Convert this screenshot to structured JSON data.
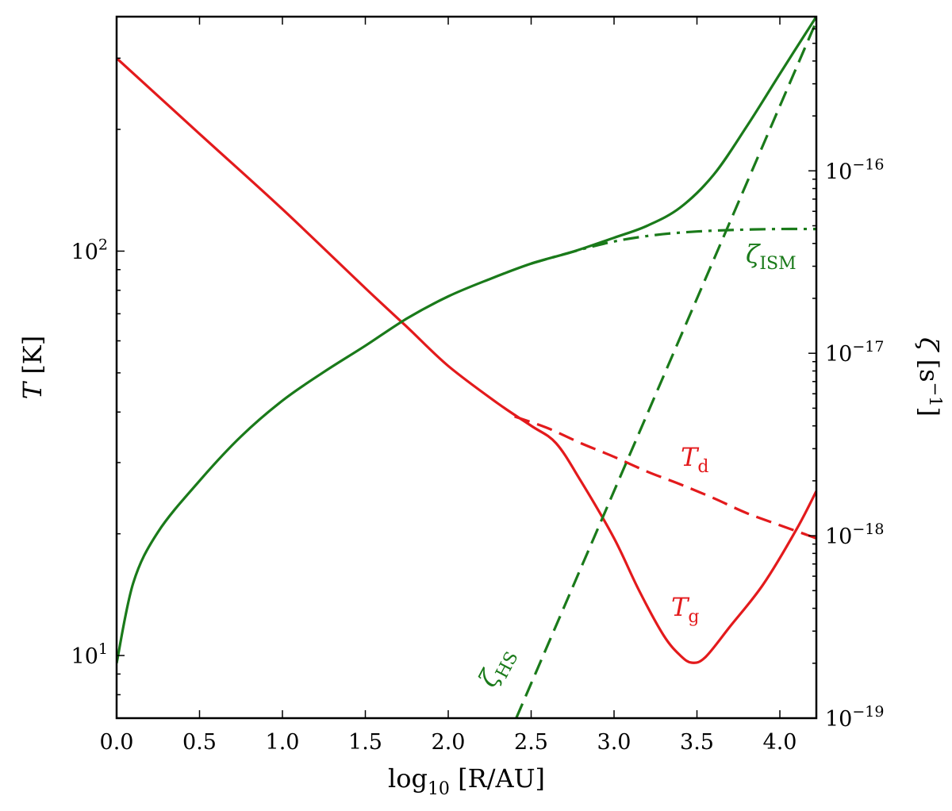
{
  "chart_data": {
    "type": "line",
    "title": "",
    "xlabel": {
      "prefix": "log",
      "sub": "10",
      "body": " [R/AU]"
    },
    "ylabel_left": {
      "var": "T",
      "unit": " [K]"
    },
    "ylabel_right": {
      "var": "ζ",
      "unit_open": " [s",
      "sup": "−1",
      "unit_close": "]"
    },
    "xlim": [
      0.0,
      4.22
    ],
    "ylim_left": [
      7,
      380
    ],
    "ylim_right": [
      1e-19,
      7e-16
    ],
    "x_ticks": [
      "0.0",
      "0.5",
      "1.0",
      "1.5",
      "2.0",
      "2.5",
      "3.0",
      "3.5",
      "4.0"
    ],
    "left_major_ticks": [
      {
        "value": 10,
        "base": "10",
        "exp": "1"
      },
      {
        "value": 100,
        "base": "10",
        "exp": "2"
      }
    ],
    "right_major_ticks": [
      {
        "value": 1e-16,
        "base": "10",
        "exp": "-16"
      },
      {
        "value": 1e-17,
        "base": "10",
        "exp": "-17"
      },
      {
        "value": 1e-18,
        "base": "10",
        "exp": "-18"
      },
      {
        "value": 1e-19,
        "base": "10",
        "exp": "-19"
      }
    ],
    "series": [
      {
        "name": "T_g",
        "axis": "left",
        "color": "#e31a1c",
        "style": "solid",
        "x": [
          0.0,
          0.5,
          1.0,
          1.5,
          1.75,
          2.0,
          2.3,
          2.5,
          2.65,
          2.8,
          3.0,
          3.15,
          3.3,
          3.4,
          3.47,
          3.55,
          3.7,
          3.9,
          4.1,
          4.22
        ],
        "y": [
          300,
          195,
          127,
          81,
          65,
          52,
          42,
          37,
          33.5,
          27,
          19.5,
          14.5,
          11.2,
          10.0,
          9.6,
          9.9,
          11.8,
          15.0,
          20.5,
          25.5
        ]
      },
      {
        "name": "T_d",
        "axis": "left",
        "color": "#e31a1c",
        "style": "dashed",
        "x": [
          2.4,
          2.6,
          2.8,
          3.0,
          3.2,
          3.4,
          3.6,
          3.8,
          4.0,
          4.22
        ],
        "y": [
          39,
          36.5,
          33.5,
          31,
          28.5,
          26.5,
          24.5,
          22.5,
          21,
          19.5
        ]
      },
      {
        "name": "ζ",
        "axis": "right",
        "color": "#1a7a1a",
        "style": "solid",
        "x": [
          0.0,
          0.1,
          0.25,
          0.5,
          0.75,
          1.0,
          1.25,
          1.5,
          1.75,
          2.0,
          2.25,
          2.5,
          2.75,
          3.0,
          3.2,
          3.4,
          3.6,
          3.8,
          4.0,
          4.22
        ],
        "y": [
          2e-19,
          5.5e-19,
          1.05e-18,
          2e-18,
          3.5e-18,
          5.5e-18,
          7.9e-18,
          1.1e-17,
          1.55e-17,
          2.05e-17,
          2.55e-17,
          3.1e-17,
          3.6e-17,
          4.3e-17,
          5e-17,
          6.3e-17,
          9.5e-17,
          1.75e-16,
          3.4e-16,
          7e-16
        ]
      },
      {
        "name": "ζ_ISM",
        "axis": "right",
        "color": "#1a7a1a",
        "style": "dashdot",
        "x": [
          2.5,
          2.75,
          3.0,
          3.25,
          3.5,
          3.75,
          4.0,
          4.22
        ],
        "y": [
          3.1e-17,
          3.6e-17,
          4.1e-17,
          4.45e-17,
          4.65e-17,
          4.75e-17,
          4.8e-17,
          4.8e-17
        ]
      },
      {
        "name": "ζ_HS",
        "axis": "right",
        "color": "#1a7a1a",
        "style": "dashed",
        "x": [
          2.41,
          4.22
        ],
        "y": [
          1e-19,
          6.6e-16
        ]
      }
    ],
    "annotations": [
      {
        "id": "zeta-ism",
        "var": "ζ",
        "sub": "ISM",
        "color": "#1a7a1a"
      },
      {
        "id": "t-d",
        "var": "T",
        "sub": "d",
        "color": "#e31a1c"
      },
      {
        "id": "t-g",
        "var": "T",
        "sub": "g",
        "color": "#e31a1c"
      },
      {
        "id": "zeta-hs",
        "var": "ζ",
        "sub": "HS",
        "color": "#1a7a1a"
      }
    ]
  }
}
